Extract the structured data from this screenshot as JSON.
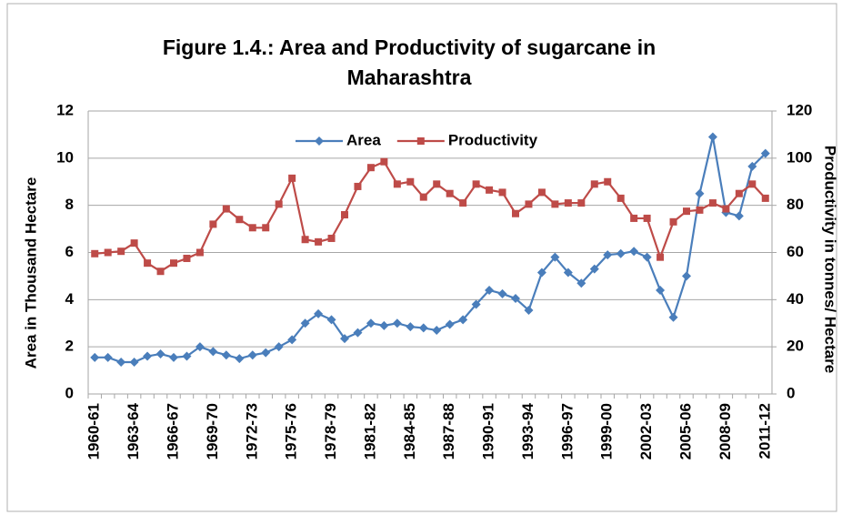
{
  "chart_data": {
    "type": "line",
    "title": "Figure 1.4.: Area and Productivity of sugarcane in Maharashtra",
    "y_label": "Area in Thousand Hectare",
    "y2_label": "Productivity in tonnes/ Hectare",
    "categories": [
      "1960-61",
      null,
      null,
      "1963-64",
      null,
      null,
      "1966-67",
      null,
      null,
      "1969-70",
      null,
      null,
      "1972-73",
      null,
      null,
      "1975-76",
      null,
      null,
      "1978-79",
      null,
      null,
      "1981-82",
      null,
      null,
      "1984-85",
      null,
      null,
      "1987-88",
      null,
      null,
      "1990-91",
      null,
      null,
      "1993-94",
      null,
      null,
      "1996-97",
      null,
      null,
      "1999-00",
      null,
      null,
      "2002-03",
      null,
      null,
      "2005-06",
      null,
      null,
      "2008-09",
      null,
      null,
      "2011-12"
    ],
    "series": [
      {
        "name": "Area",
        "color": "#4a7ebb",
        "marker": "diamond",
        "values": [
          1.55,
          1.55,
          1.35,
          1.35,
          1.6,
          1.7,
          1.55,
          1.6,
          2.0,
          1.8,
          1.65,
          1.5,
          1.65,
          1.75,
          2.0,
          2.3,
          3.0,
          3.4,
          3.15,
          2.35,
          2.6,
          3.0,
          2.9,
          3.0,
          2.85,
          2.8,
          2.7,
          2.95,
          3.15,
          3.8,
          4.4,
          4.25,
          4.05,
          3.55,
          5.15,
          5.8,
          5.15,
          4.7,
          5.3,
          5.9,
          5.95,
          6.05,
          5.8,
          4.4,
          3.25,
          5.0,
          8.5,
          10.9,
          7.7,
          7.55,
          9.65,
          10.2
        ]
      },
      {
        "name": "Productivity",
        "color": "#be4b48",
        "marker": "square",
        "axis": "y2",
        "values": [
          59.5,
          60,
          60.5,
          64,
          55.5,
          52,
          55.5,
          57.5,
          60,
          72,
          78.5,
          74,
          70.5,
          70.5,
          80.5,
          91.5,
          65.5,
          64.5,
          66,
          76,
          88,
          96,
          98.5,
          89,
          90,
          83.5,
          89,
          85,
          81,
          89,
          86.5,
          85.5,
          76.5,
          80.5,
          85.5,
          80.5,
          81,
          81,
          89,
          90,
          83,
          74.5,
          74.5,
          58,
          73,
          77.5,
          78,
          81,
          78.5,
          85,
          89,
          83
        ]
      }
    ],
    "ylim": [
      0,
      12
    ],
    "yticks": [
      0,
      2,
      4,
      6,
      8,
      10,
      12
    ],
    "y2lim": [
      0,
      120
    ],
    "y2ticks": [
      0,
      20,
      40,
      60,
      80,
      100,
      120
    ],
    "grid": true,
    "legend": "top"
  }
}
